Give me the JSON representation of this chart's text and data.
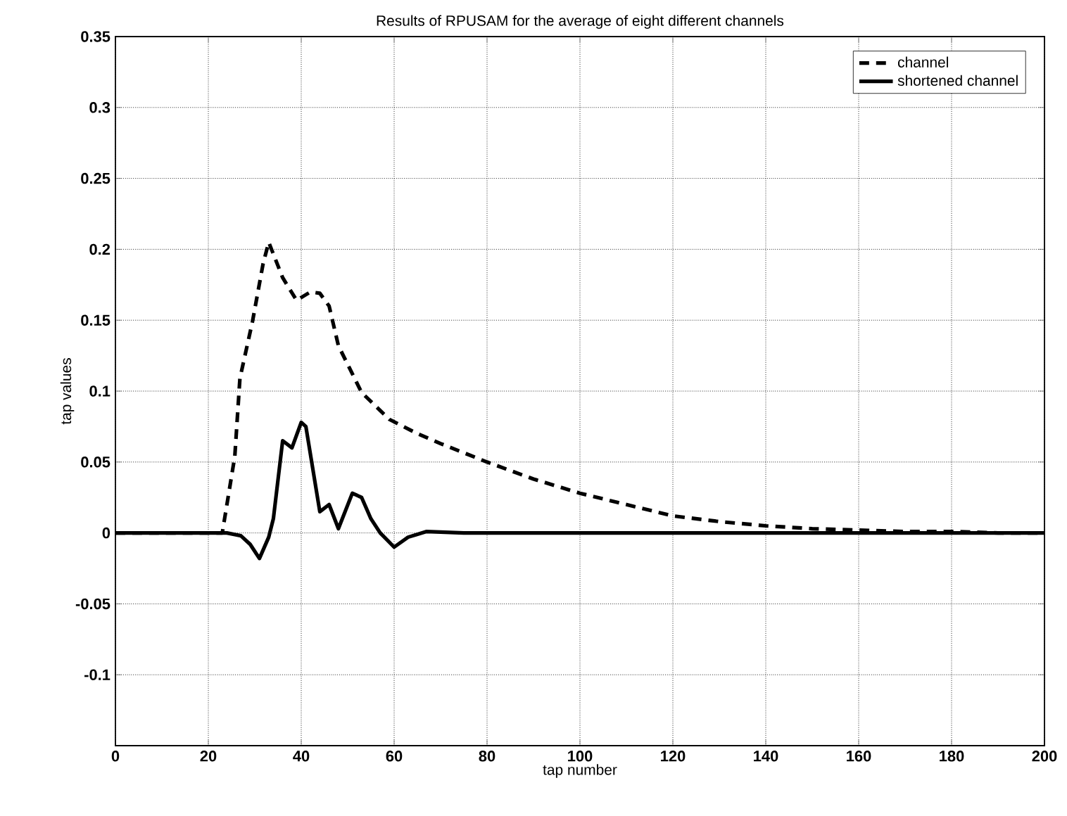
{
  "chart_data": {
    "type": "line",
    "title": "Results of RPUSAM for the average of eight different channels",
    "xlabel": "tap number",
    "ylabel": "tap values",
    "xlim": [
      0,
      200
    ],
    "ylim": [
      -0.15,
      0.35
    ],
    "xticks": [
      0,
      20,
      40,
      60,
      80,
      100,
      120,
      140,
      160,
      180,
      200
    ],
    "yticks": [
      -0.1,
      -0.05,
      0,
      0.05,
      0.1,
      0.15,
      0.2,
      0.25,
      0.3,
      0.35
    ],
    "grid": true,
    "legend": "top right",
    "series": [
      {
        "name": "channel",
        "color": "#000000",
        "line_style": "dashed",
        "x": [
          0,
          23,
          23.5,
          25.7,
          26.8,
          29.5,
          31.8,
          33,
          36,
          39,
          42,
          44,
          46,
          48,
          53,
          59,
          65,
          70,
          80,
          90,
          100,
          110,
          120,
          130,
          140,
          150,
          160,
          170,
          180,
          190,
          200
        ],
        "values": [
          0,
          0,
          0.01,
          0.054,
          0.109,
          0.149,
          0.19,
          0.205,
          0.18,
          0.164,
          0.17,
          0.169,
          0.16,
          0.132,
          0.099,
          0.08,
          0.07,
          0.063,
          0.05,
          0.038,
          0.028,
          0.02,
          0.012,
          0.008,
          0.005,
          0.003,
          0.002,
          0.001,
          0.001,
          0,
          0
        ]
      },
      {
        "name": "shortened channel",
        "color": "#000000",
        "line_style": "solid",
        "x": [
          0,
          24,
          27,
          29,
          31,
          33,
          34,
          36,
          38,
          40,
          41,
          44,
          46,
          48,
          51,
          53,
          55,
          57,
          60,
          63,
          67,
          75,
          200
        ],
        "values": [
          0,
          0,
          -0.002,
          -0.008,
          -0.018,
          -0.003,
          0.01,
          0.065,
          0.06,
          0.078,
          0.075,
          0.015,
          0.02,
          0.003,
          0.028,
          0.025,
          0.01,
          0,
          -0.01,
          -0.003,
          0.001,
          0,
          0
        ]
      }
    ]
  }
}
